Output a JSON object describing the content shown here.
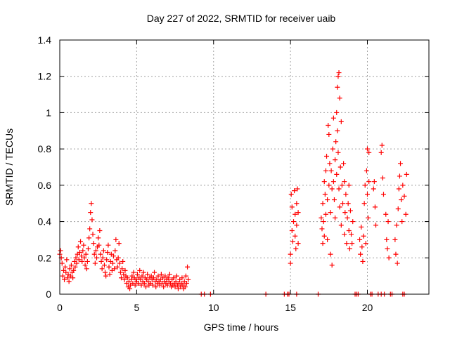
{
  "chart_data": {
    "type": "scatter",
    "title": "Day 227 of 2022, SRMTID for receiver uaib",
    "xlabel": "GPS time / hours",
    "ylabel": "SRMTID / TECUs",
    "xlim": [
      0,
      24
    ],
    "ylim": [
      0,
      1.4
    ],
    "xticks": [
      0,
      5,
      10,
      15,
      20
    ],
    "xtick_labels": [
      "0",
      "5",
      "10",
      "15",
      "20"
    ],
    "yticks": [
      0,
      0.2,
      0.4,
      0.6,
      0.8,
      1.0,
      1.2,
      1.4
    ],
    "ytick_labels": [
      "0",
      "0.2",
      "0.4",
      "0.6",
      "0.8",
      "1",
      "1.2",
      "1.4"
    ],
    "grid": true,
    "marker": "+",
    "color": "#ff0000",
    "series": [
      {
        "name": "SRMTID",
        "points": [
          [
            0.0,
            0.22
          ],
          [
            0.05,
            0.24
          ],
          [
            0.1,
            0.2
          ],
          [
            0.15,
            0.17
          ],
          [
            0.2,
            0.1
          ],
          [
            0.25,
            0.13
          ],
          [
            0.3,
            0.08
          ],
          [
            0.35,
            0.15
          ],
          [
            0.4,
            0.12
          ],
          [
            0.45,
            0.19
          ],
          [
            0.5,
            0.09
          ],
          [
            0.55,
            0.11
          ],
          [
            0.6,
            0.07
          ],
          [
            0.65,
            0.14
          ],
          [
            0.7,
            0.1
          ],
          [
            0.75,
            0.16
          ],
          [
            0.8,
            0.12
          ],
          [
            0.85,
            0.09
          ],
          [
            0.9,
            0.13
          ],
          [
            0.95,
            0.18
          ],
          [
            1.0,
            0.15
          ],
          [
            1.05,
            0.2
          ],
          [
            1.1,
            0.17
          ],
          [
            1.15,
            0.22
          ],
          [
            1.2,
            0.26
          ],
          [
            1.25,
            0.19
          ],
          [
            1.3,
            0.23
          ],
          [
            1.35,
            0.29
          ],
          [
            1.4,
            0.21
          ],
          [
            1.45,
            0.18
          ],
          [
            1.5,
            0.24
          ],
          [
            1.55,
            0.27
          ],
          [
            1.6,
            0.2
          ],
          [
            1.65,
            0.16
          ],
          [
            1.7,
            0.22
          ],
          [
            1.75,
            0.14
          ],
          [
            1.8,
            0.18
          ],
          [
            1.85,
            0.25
          ],
          [
            1.9,
            0.31
          ],
          [
            1.95,
            0.36
          ],
          [
            2.0,
            0.45
          ],
          [
            2.05,
            0.5
          ],
          [
            2.1,
            0.41
          ],
          [
            2.15,
            0.33
          ],
          [
            2.2,
            0.28
          ],
          [
            2.25,
            0.22
          ],
          [
            2.3,
            0.17
          ],
          [
            2.35,
            0.24
          ],
          [
            2.4,
            0.2
          ],
          [
            2.45,
            0.26
          ],
          [
            2.5,
            0.31
          ],
          [
            2.55,
            0.27
          ],
          [
            2.6,
            0.35
          ],
          [
            2.65,
            0.22
          ],
          [
            2.7,
            0.18
          ],
          [
            2.75,
            0.14
          ],
          [
            2.8,
            0.2
          ],
          [
            2.85,
            0.24
          ],
          [
            2.9,
            0.16
          ],
          [
            2.95,
            0.12
          ],
          [
            3.0,
            0.1
          ],
          [
            3.05,
            0.19
          ],
          [
            3.1,
            0.23
          ],
          [
            3.15,
            0.27
          ],
          [
            3.2,
            0.15
          ],
          [
            3.25,
            0.11
          ],
          [
            3.3,
            0.18
          ],
          [
            3.35,
            0.22
          ],
          [
            3.4,
            0.13
          ],
          [
            3.45,
            0.17
          ],
          [
            3.5,
            0.21
          ],
          [
            3.55,
            0.14
          ],
          [
            3.6,
            0.24
          ],
          [
            3.65,
            0.3
          ],
          [
            3.7,
            0.19
          ],
          [
            3.75,
            0.15
          ],
          [
            3.8,
            0.2
          ],
          [
            3.85,
            0.28
          ],
          [
            3.9,
            0.17
          ],
          [
            3.95,
            0.12
          ],
          [
            4.0,
            0.09
          ],
          [
            4.05,
            0.14
          ],
          [
            4.1,
            0.18
          ],
          [
            4.15,
            0.11
          ],
          [
            4.2,
            0.08
          ],
          [
            4.25,
            0.13
          ],
          [
            4.3,
            0.1
          ],
          [
            4.35,
            0.06
          ],
          [
            4.4,
            0.09
          ],
          [
            4.45,
            0.04
          ],
          [
            4.5,
            0.07
          ],
          [
            4.55,
            0.03
          ],
          [
            4.6,
            0.05
          ],
          [
            4.65,
            0.08
          ],
          [
            4.7,
            0.1
          ],
          [
            4.75,
            0.06
          ],
          [
            4.8,
            0.12
          ],
          [
            4.85,
            0.09
          ],
          [
            4.9,
            0.05
          ],
          [
            4.95,
            0.08
          ],
          [
            5.0,
            0.07
          ],
          [
            5.05,
            0.11
          ],
          [
            5.1,
            0.06
          ],
          [
            5.15,
            0.09
          ],
          [
            5.2,
            0.13
          ],
          [
            5.25,
            0.08
          ],
          [
            5.3,
            0.05
          ],
          [
            5.35,
            0.1
          ],
          [
            5.4,
            0.07
          ],
          [
            5.45,
            0.12
          ],
          [
            5.5,
            0.06
          ],
          [
            5.55,
            0.09
          ],
          [
            5.6,
            0.04
          ],
          [
            5.65,
            0.08
          ],
          [
            5.7,
            0.11
          ],
          [
            5.75,
            0.07
          ],
          [
            5.8,
            0.05
          ],
          [
            5.85,
            0.09
          ],
          [
            5.9,
            0.06
          ],
          [
            5.95,
            0.1
          ],
          [
            6.0,
            0.08
          ],
          [
            6.05,
            0.05
          ],
          [
            6.1,
            0.09
          ],
          [
            6.15,
            0.12
          ],
          [
            6.2,
            0.07
          ],
          [
            6.25,
            0.04
          ],
          [
            6.3,
            0.08
          ],
          [
            6.35,
            0.06
          ],
          [
            6.4,
            0.1
          ],
          [
            6.45,
            0.07
          ],
          [
            6.5,
            0.05
          ],
          [
            6.55,
            0.08
          ],
          [
            6.6,
            0.11
          ],
          [
            6.65,
            0.06
          ],
          [
            6.7,
            0.09
          ],
          [
            6.75,
            0.04
          ],
          [
            6.8,
            0.07
          ],
          [
            6.85,
            0.1
          ],
          [
            6.9,
            0.06
          ],
          [
            6.95,
            0.08
          ],
          [
            7.0,
            0.05
          ],
          [
            7.05,
            0.09
          ],
          [
            7.1,
            0.07
          ],
          [
            7.15,
            0.11
          ],
          [
            7.2,
            0.06
          ],
          [
            7.25,
            0.04
          ],
          [
            7.3,
            0.08
          ],
          [
            7.35,
            0.05
          ],
          [
            7.4,
            0.09
          ],
          [
            7.45,
            0.06
          ],
          [
            7.5,
            0.04
          ],
          [
            7.55,
            0.07
          ],
          [
            7.6,
            0.1
          ],
          [
            7.65,
            0.05
          ],
          [
            7.7,
            0.03
          ],
          [
            7.75,
            0.06
          ],
          [
            7.8,
            0.08
          ],
          [
            7.85,
            0.04
          ],
          [
            7.9,
            0.06
          ],
          [
            7.95,
            0.09
          ],
          [
            8.0,
            0.05
          ],
          [
            8.05,
            0.03
          ],
          [
            8.1,
            0.07
          ],
          [
            8.15,
            0.04
          ],
          [
            8.2,
            0.1
          ],
          [
            8.25,
            0.06
          ],
          [
            8.3,
            0.15
          ],
          [
            8.35,
            0.08
          ],
          [
            9.2,
            0.0
          ],
          [
            9.4,
            0.0
          ],
          [
            9.8,
            0.0
          ],
          [
            13.4,
            0.0
          ],
          [
            14.6,
            0.0
          ],
          [
            14.8,
            0.0
          ],
          [
            14.9,
            0.0
          ],
          [
            15.4,
            0.0
          ],
          [
            16.8,
            0.0
          ],
          [
            15.0,
            0.17
          ],
          [
            15.0,
            0.22
          ],
          [
            15.05,
            0.55
          ],
          [
            15.1,
            0.48
          ],
          [
            15.1,
            0.35
          ],
          [
            15.15,
            0.29
          ],
          [
            15.2,
            0.4
          ],
          [
            15.25,
            0.57
          ],
          [
            15.3,
            0.44
          ],
          [
            15.3,
            0.32
          ],
          [
            15.35,
            0.25
          ],
          [
            15.4,
            0.5
          ],
          [
            15.4,
            0.38
          ],
          [
            15.45,
            0.58
          ],
          [
            15.5,
            0.28
          ],
          [
            15.5,
            0.45
          ],
          [
            17.0,
            0.42
          ],
          [
            17.05,
            0.36
          ],
          [
            17.1,
            0.28
          ],
          [
            17.1,
            0.5
          ],
          [
            17.15,
            0.4
          ],
          [
            17.2,
            0.62
          ],
          [
            17.2,
            0.32
          ],
          [
            17.25,
            0.55
          ],
          [
            17.3,
            0.68
          ],
          [
            17.3,
            0.44
          ],
          [
            17.35,
            0.76
          ],
          [
            17.4,
            0.52
          ],
          [
            17.4,
            0.3
          ],
          [
            17.45,
            0.93
          ],
          [
            17.5,
            0.6
          ],
          [
            17.5,
            0.88
          ],
          [
            17.55,
            0.72
          ],
          [
            17.6,
            0.22
          ],
          [
            17.6,
            0.45
          ],
          [
            17.65,
            0.68
          ],
          [
            17.7,
            0.16
          ],
          [
            17.7,
            0.58
          ],
          [
            17.75,
            0.8
          ],
          [
            17.8,
            0.97
          ],
          [
            17.8,
            0.62
          ],
          [
            17.85,
            0.52
          ],
          [
            17.9,
            0.42
          ],
          [
            17.9,
            0.74
          ],
          [
            17.95,
            0.84
          ],
          [
            18.0,
            1.0
          ],
          [
            18.0,
            0.66
          ],
          [
            18.05,
            0.9
          ],
          [
            18.05,
            1.14
          ],
          [
            18.1,
            1.2
          ],
          [
            18.1,
            0.78
          ],
          [
            18.15,
            1.22
          ],
          [
            18.15,
            0.58
          ],
          [
            18.2,
            1.08
          ],
          [
            18.2,
            0.48
          ],
          [
            18.25,
            0.7
          ],
          [
            18.3,
            0.95
          ],
          [
            18.3,
            0.38
          ],
          [
            18.35,
            0.6
          ],
          [
            18.4,
            0.5
          ],
          [
            18.45,
            0.72
          ],
          [
            18.5,
            0.33
          ],
          [
            18.5,
            0.62
          ],
          [
            18.55,
            0.45
          ],
          [
            18.6,
            0.55
          ],
          [
            18.65,
            0.28
          ],
          [
            18.7,
            0.42
          ],
          [
            18.75,
            0.5
          ],
          [
            18.8,
            0.35
          ],
          [
            18.8,
            0.6
          ],
          [
            18.85,
            0.25
          ],
          [
            18.9,
            0.46
          ],
          [
            18.95,
            0.33
          ],
          [
            19.0,
            0.28
          ],
          [
            19.05,
            0.4
          ],
          [
            19.5,
            0.3
          ],
          [
            19.55,
            0.22
          ],
          [
            19.6,
            0.37
          ],
          [
            19.65,
            0.26
          ],
          [
            19.7,
            0.18
          ],
          [
            19.75,
            0.32
          ],
          [
            19.8,
            0.5
          ],
          [
            19.85,
            0.6
          ],
          [
            19.9,
            0.28
          ],
          [
            19.95,
            0.68
          ],
          [
            20.0,
            0.8
          ],
          [
            20.0,
            0.55
          ],
          [
            20.05,
            0.42
          ],
          [
            20.1,
            0.78
          ],
          [
            20.1,
            0.62
          ],
          [
            20.4,
            0.58
          ],
          [
            20.45,
            0.62
          ],
          [
            20.5,
            0.48
          ],
          [
            20.55,
            0.38
          ],
          [
            20.9,
            0.78
          ],
          [
            20.95,
            0.82
          ],
          [
            21.0,
            0.64
          ],
          [
            21.05,
            0.55
          ],
          [
            21.2,
            0.44
          ],
          [
            21.25,
            0.3
          ],
          [
            21.3,
            0.25
          ],
          [
            21.35,
            0.4
          ],
          [
            21.4,
            0.2
          ],
          [
            21.8,
            0.3
          ],
          [
            21.85,
            0.22
          ],
          [
            21.9,
            0.38
          ],
          [
            21.95,
            0.17
          ],
          [
            22.0,
            0.47
          ],
          [
            22.05,
            0.58
          ],
          [
            22.1,
            0.65
          ],
          [
            22.15,
            0.72
          ],
          [
            22.2,
            0.52
          ],
          [
            22.25,
            0.4
          ],
          [
            22.3,
            0.6
          ],
          [
            22.4,
            0.54
          ],
          [
            22.5,
            0.44
          ],
          [
            22.55,
            0.66
          ],
          [
            19.2,
            0.0
          ],
          [
            19.3,
            0.0
          ],
          [
            19.4,
            0.0
          ],
          [
            20.2,
            0.0
          ],
          [
            20.3,
            0.0
          ],
          [
            20.7,
            0.0
          ],
          [
            20.9,
            0.0
          ],
          [
            21.1,
            0.0
          ],
          [
            21.5,
            0.0
          ],
          [
            21.6,
            0.0
          ],
          [
            22.3,
            0.0
          ],
          [
            22.4,
            0.0
          ]
        ]
      }
    ]
  }
}
